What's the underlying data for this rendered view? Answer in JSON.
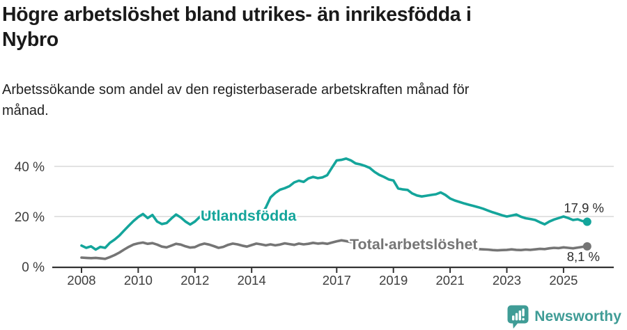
{
  "header": {
    "title_lines": [
      "Högre arbetslöshet bland utrikes- än inrikesfödda i",
      "Nybro"
    ],
    "subtitle_lines": [
      "Arbetssökande som andel av den registerbaserade arbetskraften månad för",
      "månad."
    ]
  },
  "chart_data": {
    "type": "line",
    "title": "Högre arbetslöshet bland utrikes- än inrikesfödda i Nybro",
    "subtitle": "Arbetssökande som andel av den registerbaserade arbetskraften månad för månad.",
    "unit": "%",
    "x_start": 2008,
    "x_step_years": 0.16667,
    "xlim": [
      2007.0,
      2026.8
    ],
    "ylim": [
      0,
      45
    ],
    "grid": "horizontal",
    "legend": "inline-labels",
    "x_ticks": [
      "2008",
      "2010",
      "2012",
      "2014",
      "2017",
      "2019",
      "2021",
      "2023",
      "2025"
    ],
    "x_tick_years": [
      2008,
      2010,
      2012,
      2014,
      2017,
      2019,
      2021,
      2023,
      2025
    ],
    "y_ticks": [
      {
        "value": 0,
        "label": "0 %"
      },
      {
        "value": 20,
        "label": "20 %"
      },
      {
        "value": 40,
        "label": "40 %"
      }
    ],
    "series": [
      {
        "name": "Utlandsfödda",
        "color": "#14A59B",
        "end_label": "17,9 %",
        "end_value": 17.9,
        "values": [
          8.4,
          7.5,
          8.1,
          6.8,
          7.9,
          7.5,
          9.5,
          10.8,
          12.4,
          14.4,
          16.3,
          18.2,
          19.8,
          21.0,
          19.4,
          20.6,
          18.0,
          17.0,
          17.4,
          19.2,
          20.8,
          19.6,
          18.0,
          16.8,
          18.0,
          19.8,
          21.0,
          20.2,
          20.6,
          19.6,
          20.4,
          21.0,
          20.3,
          20.8,
          21.2,
          20.6,
          21.3,
          21.5,
          20.8,
          23.6,
          27.6,
          29.4,
          30.7,
          31.3,
          32.1,
          33.6,
          34.3,
          33.8,
          35.2,
          35.8,
          35.3,
          35.6,
          36.5,
          39.5,
          42.4,
          42.6,
          43.1,
          42.4,
          41.2,
          40.8,
          40.2,
          39.4,
          37.8,
          36.6,
          35.8,
          34.8,
          34.4,
          31.2,
          30.8,
          30.6,
          29.2,
          28.4,
          28.0,
          28.3,
          28.6,
          28.9,
          29.6,
          28.6,
          27.2,
          26.4,
          25.8,
          25.2,
          24.7,
          24.2,
          23.7,
          23.1,
          22.4,
          21.7,
          21.1,
          20.5,
          20.0,
          20.4,
          20.8,
          19.9,
          19.3,
          19.0,
          18.6,
          17.7,
          16.9,
          18.0,
          18.8,
          19.4,
          20.0,
          19.4,
          18.6,
          18.9,
          18.2,
          17.9
        ]
      },
      {
        "name": "Total arbetslöshet",
        "color": "#757575",
        "end_label": "8,1 %",
        "end_value": 8.1,
        "values": [
          3.6,
          3.5,
          3.4,
          3.5,
          3.3,
          3.1,
          3.8,
          4.6,
          5.6,
          6.8,
          7.9,
          8.8,
          9.3,
          9.6,
          9.1,
          9.4,
          8.8,
          8.0,
          7.7,
          8.4,
          9.1,
          8.8,
          8.1,
          7.6,
          7.8,
          8.7,
          9.2,
          8.8,
          8.2,
          7.5,
          7.9,
          8.7,
          9.2,
          8.9,
          8.4,
          8.0,
          8.6,
          9.2,
          8.9,
          8.5,
          8.9,
          8.5,
          8.8,
          9.3,
          9.0,
          8.7,
          9.2,
          8.9,
          9.1,
          9.5,
          9.2,
          9.4,
          9.1,
          9.6,
          10.1,
          10.5,
          10.2,
          9.8,
          10.0,
          9.6,
          9.8,
          10.0,
          9.5,
          9.1,
          8.9,
          8.6,
          8.8,
          8.5,
          8.2,
          8.0,
          7.8,
          7.7,
          8.0,
          8.6,
          8.9,
          8.6,
          8.3,
          8.1,
          8.0,
          7.8,
          7.6,
          7.4,
          7.2,
          7.1,
          7.0,
          6.9,
          6.8,
          6.6,
          6.5,
          6.6,
          6.7,
          6.9,
          6.7,
          6.6,
          6.8,
          6.7,
          6.9,
          7.1,
          7.0,
          7.3,
          7.5,
          7.4,
          7.7,
          7.5,
          7.3,
          7.6,
          7.9,
          8.1
        ]
      }
    ]
  },
  "footer": {
    "brand": "Newsworthy",
    "brand_color": "#3F9C96"
  }
}
